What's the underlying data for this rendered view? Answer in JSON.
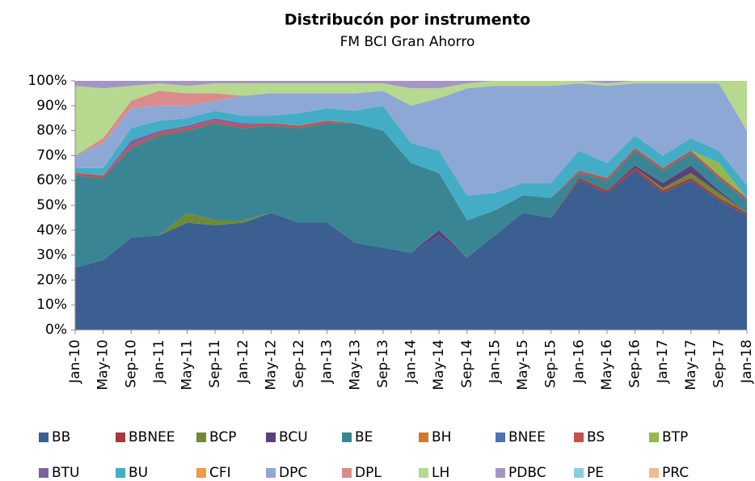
{
  "chart_data": {
    "type": "stacked_area",
    "title": "Distribucón por instrumento",
    "subtitle": "FM BCI Gran Ahorro",
    "categories": [
      "Jan-10",
      "May-10",
      "Sep-10",
      "Jan-11",
      "May-11",
      "Sep-11",
      "Jan-12",
      "May-12",
      "Sep-12",
      "Jan-13",
      "May-13",
      "Sep-13",
      "Jan-14",
      "May-14",
      "Sep-14",
      "Jan-15",
      "May-15",
      "Sep-15",
      "Jan-16",
      "May-16",
      "Sep-16",
      "Jan-17",
      "May-17",
      "Sep-17",
      "Jan-18"
    ],
    "ylim": [
      0,
      100
    ],
    "yticks": [
      {
        "value": 0,
        "label": "0%"
      },
      {
        "value": 10,
        "label": "10%"
      },
      {
        "value": 20,
        "label": "20%"
      },
      {
        "value": 30,
        "label": "30%"
      },
      {
        "value": 40,
        "label": "40%"
      },
      {
        "value": 50,
        "label": "50%"
      },
      {
        "value": 60,
        "label": "60%"
      },
      {
        "value": 70,
        "label": "70%"
      },
      {
        "value": 80,
        "label": "80%"
      },
      {
        "value": 90,
        "label": "90%"
      },
      {
        "value": 100,
        "label": "100%"
      }
    ],
    "legend": "bottom",
    "series": [
      {
        "name": "BB",
        "color": "#3b5f91",
        "values": [
          25,
          28,
          37,
          38,
          43,
          42,
          43,
          47,
          43,
          43,
          35,
          33,
          31,
          38,
          29,
          38,
          47,
          45,
          60,
          55,
          64,
          55,
          60,
          52,
          46
        ]
      },
      {
        "name": "BBNEE",
        "color": "#a33b3b",
        "values": [
          0,
          0,
          0,
          0,
          0,
          0,
          0,
          0,
          0,
          0,
          0,
          0,
          0,
          0,
          0,
          0,
          0,
          0,
          1,
          1,
          1,
          1,
          1,
          1,
          1
        ]
      },
      {
        "name": "BCP",
        "color": "#6f8a36",
        "values": [
          0,
          0,
          0,
          0,
          4,
          2,
          1,
          0,
          0,
          0,
          0,
          0,
          0,
          0,
          0,
          0,
          0,
          0,
          0,
          0,
          0,
          1,
          2,
          2,
          0
        ]
      },
      {
        "name": "BCU",
        "color": "#5b3f7a",
        "values": [
          0,
          0,
          0,
          0,
          0,
          0,
          0,
          0,
          0,
          0,
          0,
          0,
          0,
          2,
          0,
          0,
          0,
          0,
          0,
          0,
          1,
          2,
          3,
          1,
          0
        ]
      },
      {
        "name": "BE",
        "color": "#3a8593",
        "values": [
          37,
          33,
          36,
          40,
          33,
          39,
          37,
          35,
          38,
          40,
          48,
          47,
          36,
          23,
          15,
          10,
          7,
          8,
          2,
          4,
          6,
          5,
          5,
          5,
          5
        ]
      },
      {
        "name": "BH",
        "color": "#d17a2c",
        "values": [
          0,
          0,
          0,
          0,
          0,
          0,
          0,
          0,
          0,
          0,
          0,
          0,
          0,
          0,
          0,
          0,
          0,
          0,
          0,
          0,
          0,
          0,
          0,
          0,
          0
        ]
      },
      {
        "name": "BNEE",
        "color": "#4a74b5",
        "values": [
          0,
          0,
          0,
          0,
          0,
          0,
          0,
          0,
          0,
          0,
          0,
          0,
          0,
          0,
          0,
          0,
          0,
          0,
          0,
          0,
          0,
          0,
          0,
          0,
          0
        ]
      },
      {
        "name": "BS",
        "color": "#c4504d",
        "values": [
          1,
          1,
          1,
          1,
          1,
          1,
          1,
          1,
          1,
          1,
          0,
          0,
          0,
          0,
          0,
          0,
          0,
          0,
          1,
          1,
          1,
          1,
          1,
          1,
          1
        ]
      },
      {
        "name": "BTP",
        "color": "#94b84e",
        "values": [
          0,
          0,
          0,
          0,
          0,
          0,
          0,
          0,
          0,
          0,
          0,
          0,
          0,
          0,
          0,
          0,
          0,
          0,
          0,
          0,
          0,
          0,
          0,
          5,
          0
        ]
      },
      {
        "name": "BTU",
        "color": "#7d63a0",
        "values": [
          0,
          0,
          2,
          1,
          1,
          1,
          1,
          0,
          0,
          0,
          0,
          0,
          0,
          0,
          0,
          0,
          0,
          0,
          0,
          0,
          0,
          0,
          0,
          0,
          0
        ]
      },
      {
        "name": "BU",
        "color": "#44adc6",
        "values": [
          2,
          3,
          5,
          4,
          3,
          3,
          3,
          3,
          5,
          5,
          5,
          10,
          8,
          9,
          10,
          7,
          5,
          6,
          8,
          6,
          5,
          5,
          5,
          5,
          5
        ]
      },
      {
        "name": "CFI",
        "color": "#f09a4a",
        "values": [
          0,
          0,
          0,
          0,
          0,
          0,
          0,
          0,
          0,
          0,
          0,
          0,
          0,
          0,
          0,
          0,
          0,
          0,
          0,
          0,
          0,
          0,
          0,
          0,
          0
        ]
      },
      {
        "name": "DPC",
        "color": "#8ea8d6",
        "values": [
          5,
          10,
          8,
          6,
          5,
          4,
          8,
          9,
          8,
          6,
          7,
          6,
          15,
          21,
          43,
          43,
          39,
          39,
          27,
          31,
          21,
          29,
          22,
          27,
          22
        ]
      },
      {
        "name": "DPL",
        "color": "#dc8b8b",
        "values": [
          0,
          2,
          3,
          6,
          5,
          3,
          0,
          0,
          0,
          0,
          0,
          0,
          0,
          0,
          0,
          0,
          0,
          0,
          0,
          0,
          0,
          0,
          0,
          0,
          0
        ]
      },
      {
        "name": "LH",
        "color": "#b7d88f",
        "values": [
          28,
          20,
          6,
          3,
          3,
          4,
          5,
          4,
          4,
          4,
          4,
          3,
          7,
          4,
          2,
          2,
          2,
          2,
          1,
          1,
          1,
          1,
          1,
          1,
          20
        ]
      },
      {
        "name": "PDBC",
        "color": "#a595c5",
        "values": [
          2,
          3,
          2,
          1,
          2,
          1,
          1,
          1,
          1,
          1,
          1,
          1,
          3,
          3,
          1,
          0,
          0,
          0,
          0,
          1,
          0,
          0,
          0,
          0,
          0
        ]
      },
      {
        "name": "PE",
        "color": "#89cde0",
        "values": [
          0,
          0,
          0,
          0,
          0,
          0,
          0,
          0,
          0,
          0,
          0,
          0,
          0,
          0,
          0,
          0,
          0,
          0,
          0,
          0,
          0,
          0,
          0,
          0,
          0
        ]
      },
      {
        "name": "PRC",
        "color": "#f9b98d",
        "values": [
          0,
          0,
          0,
          0,
          0,
          0,
          0,
          0,
          0,
          0,
          0,
          0,
          0,
          0,
          0,
          0,
          0,
          0,
          0,
          0,
          0,
          0,
          0,
          0,
          0
        ]
      }
    ]
  }
}
